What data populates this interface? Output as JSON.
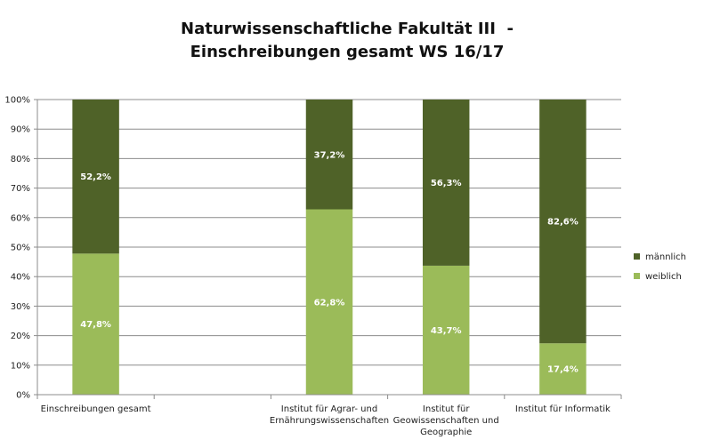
{
  "chart_data": {
    "type": "bar",
    "stacked": true,
    "title_lines": [
      "Naturwissenschaftliche Fakultät III  -",
      "Einschreibungen gesamt WS 16/17"
    ],
    "categories": [
      [
        "Einschreibungen gesamt"
      ],
      [
        ""
      ],
      [
        "Institut für Agrar- und",
        "Ernährungswissenschaften"
      ],
      [
        "Institut für",
        "Geowissenschaften und",
        "Geographie"
      ],
      [
        "Institut für Informatik"
      ]
    ],
    "series": [
      {
        "name": "weiblich",
        "color": "#9bbb59",
        "values": [
          47.8,
          null,
          62.8,
          43.7,
          17.4
        ],
        "labels": [
          "47,8%",
          "",
          "62,8%",
          "43,7%",
          "17,4%"
        ]
      },
      {
        "name": "männlich",
        "color": "#4f6228",
        "values": [
          52.2,
          null,
          37.2,
          56.3,
          82.6
        ],
        "labels": [
          "52,2%",
          "",
          "37,2%",
          "56,3%",
          "82,6%"
        ]
      }
    ],
    "yticks": [
      "0%",
      "10%",
      "20%",
      "30%",
      "40%",
      "50%",
      "60%",
      "70%",
      "80%",
      "90%",
      "100%"
    ],
    "ylim": [
      0,
      100
    ],
    "grid": true,
    "legend_position": "right"
  }
}
